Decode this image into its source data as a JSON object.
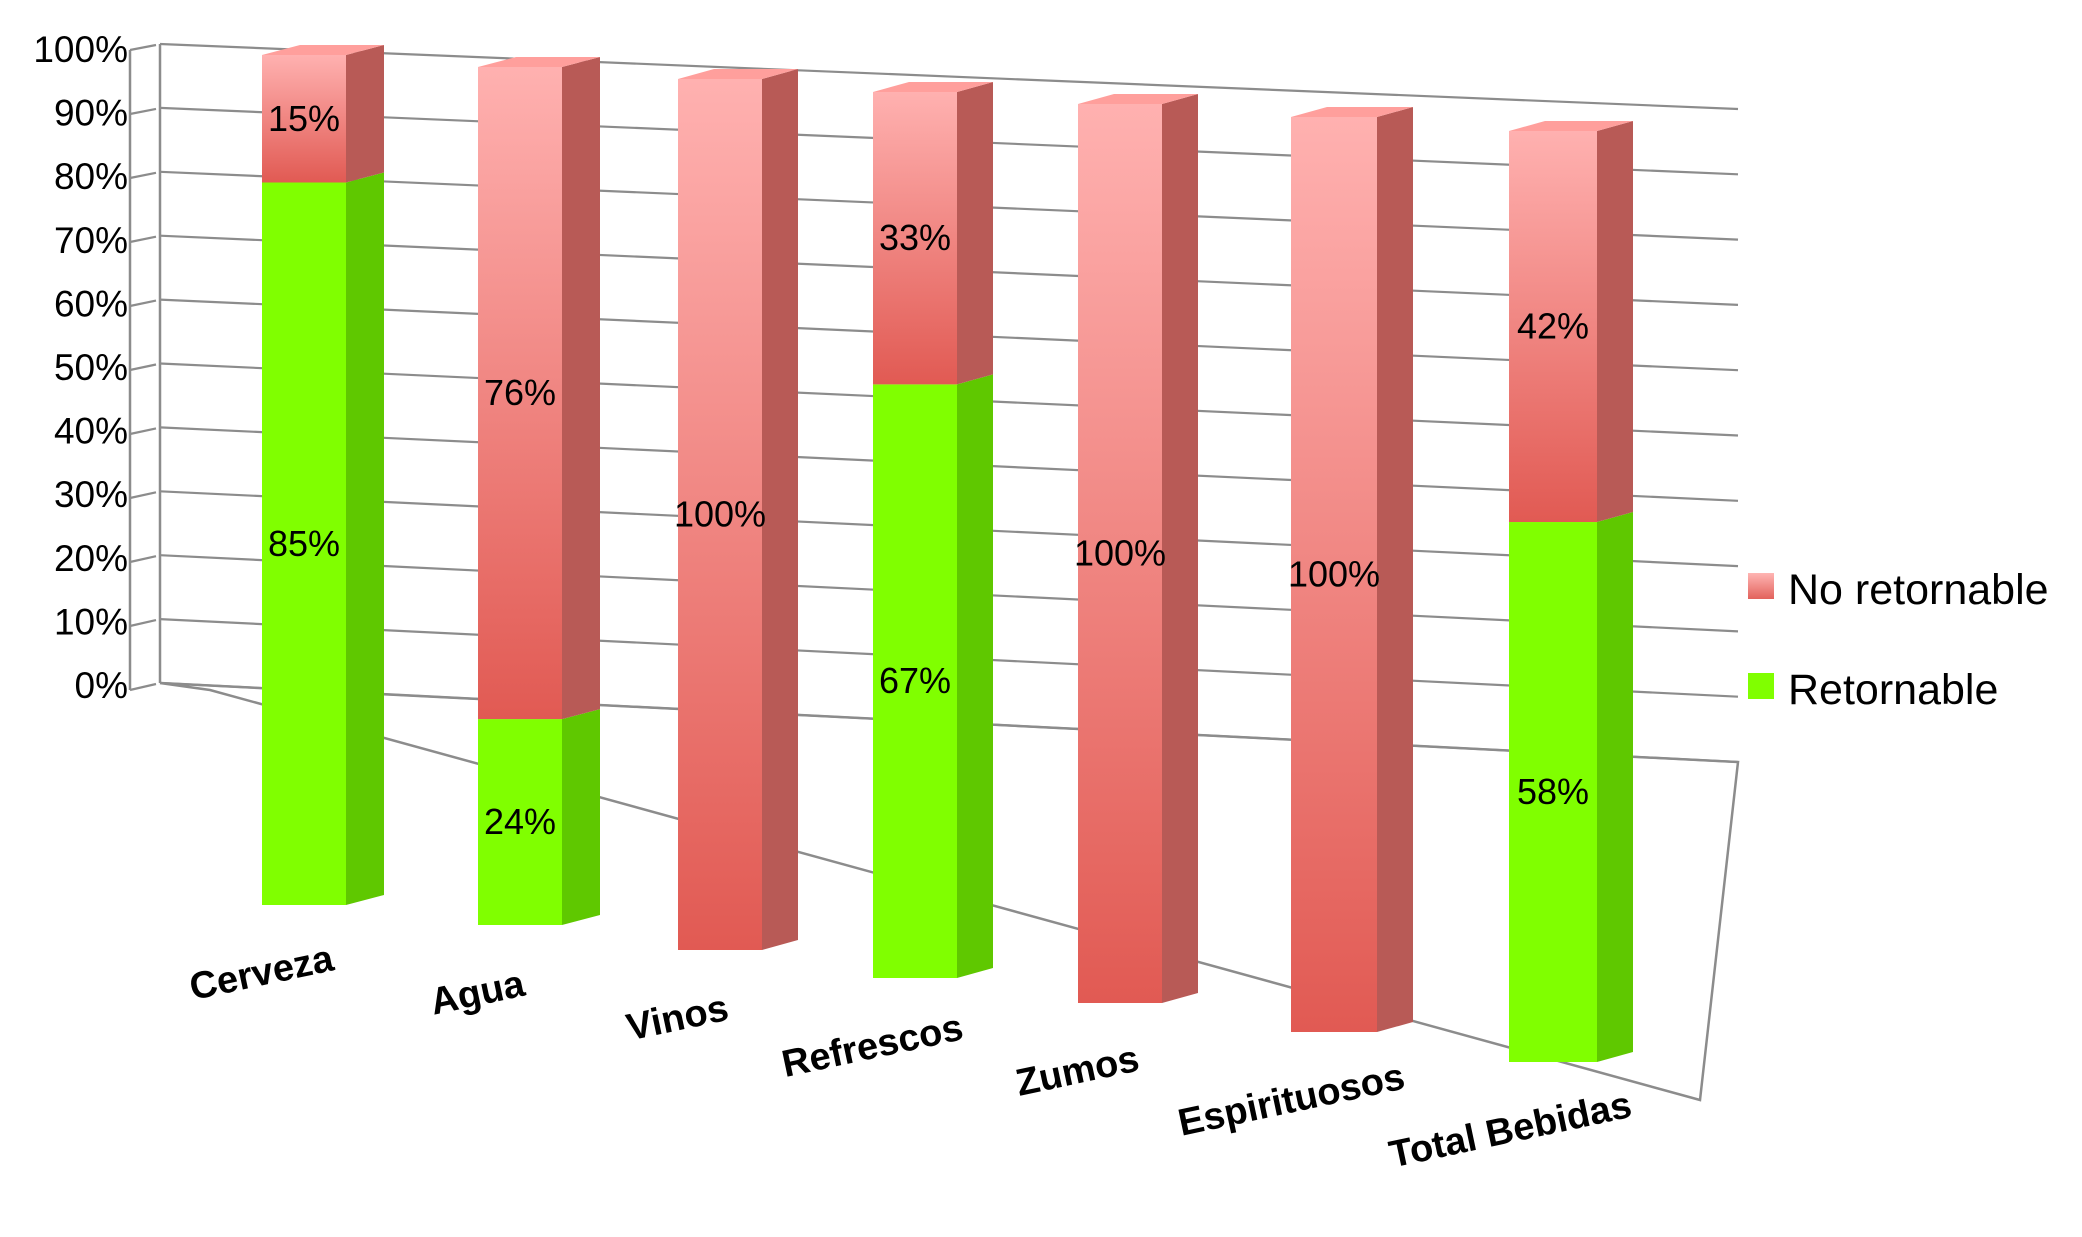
{
  "chart_data": {
    "type": "bar",
    "stacked": true,
    "percent_stacked": true,
    "three_d": true,
    "categories": [
      "Cerveza",
      "Agua",
      "Vinos",
      "Refrescos",
      "Zumos",
      "Espirituosos",
      "Total Bebidas"
    ],
    "series": [
      {
        "name": "Retornable",
        "color": "#80ff00",
        "values": [
          85,
          24,
          0,
          67,
          0,
          0,
          58
        ],
        "labels": [
          "85%",
          "24%",
          "",
          "67%",
          "",
          "",
          "58%"
        ]
      },
      {
        "name": "No retornable",
        "color": "#e8605c",
        "values": [
          15,
          76,
          100,
          33,
          100,
          100,
          42
        ],
        "labels": [
          "15%",
          "76%",
          "100%",
          "33%",
          "100%",
          "100%",
          "42%"
        ]
      }
    ],
    "y_ticks": [
      "0%",
      "10%",
      "20%",
      "30%",
      "40%",
      "50%",
      "60%",
      "70%",
      "80%",
      "90%",
      "100%"
    ],
    "ylim": [
      0,
      100
    ],
    "grid": true,
    "legend": {
      "position": "right",
      "entries": [
        "No retornable",
        "Retornable"
      ]
    }
  }
}
